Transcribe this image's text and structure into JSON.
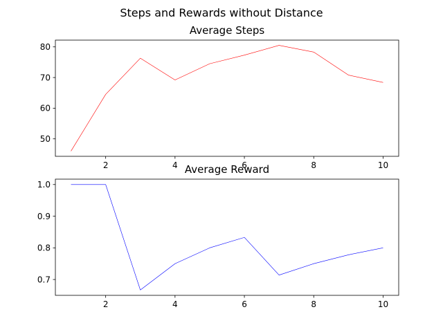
{
  "figure_title": "Steps and Rewards without Distance",
  "chart_data": [
    {
      "type": "line",
      "title": "Average Steps",
      "xlabel": "",
      "ylabel": "",
      "color": "#ff0000",
      "x": [
        1,
        2,
        3,
        4,
        5,
        6,
        7,
        8,
        9,
        10
      ],
      "y": [
        46.0,
        64.5,
        76.3,
        69.2,
        74.5,
        77.3,
        80.5,
        78.3,
        70.8,
        68.4
      ],
      "xlim": [
        0.55,
        10.45
      ],
      "ylim": [
        44.3,
        82.2
      ],
      "xticks": [
        2,
        4,
        6,
        8,
        10
      ],
      "yticks": [
        50,
        60,
        70,
        80
      ],
      "tick_labels_x": [
        "2",
        "4",
        "6",
        "8",
        "10"
      ],
      "tick_labels_y": [
        "50",
        "60",
        "70",
        "80"
      ],
      "grid": false
    },
    {
      "type": "line",
      "title": "Average Reward",
      "xlabel": "",
      "ylabel": "",
      "color": "#0000ff",
      "x": [
        1,
        2,
        3,
        4,
        5,
        6,
        7,
        8,
        9,
        10
      ],
      "y": [
        1.0,
        1.0,
        0.667,
        0.75,
        0.8,
        0.833,
        0.714,
        0.75,
        0.778,
        0.8
      ],
      "xlim": [
        0.55,
        10.45
      ],
      "ylim": [
        0.65,
        1.017
      ],
      "xticks": [
        2,
        4,
        6,
        8,
        10
      ],
      "yticks": [
        0.7,
        0.8,
        0.9,
        1.0
      ],
      "tick_labels_x": [
        "2",
        "4",
        "6",
        "8",
        "10"
      ],
      "tick_labels_y": [
        "0.7",
        "0.8",
        "0.9",
        "1.0"
      ],
      "grid": false
    }
  ]
}
